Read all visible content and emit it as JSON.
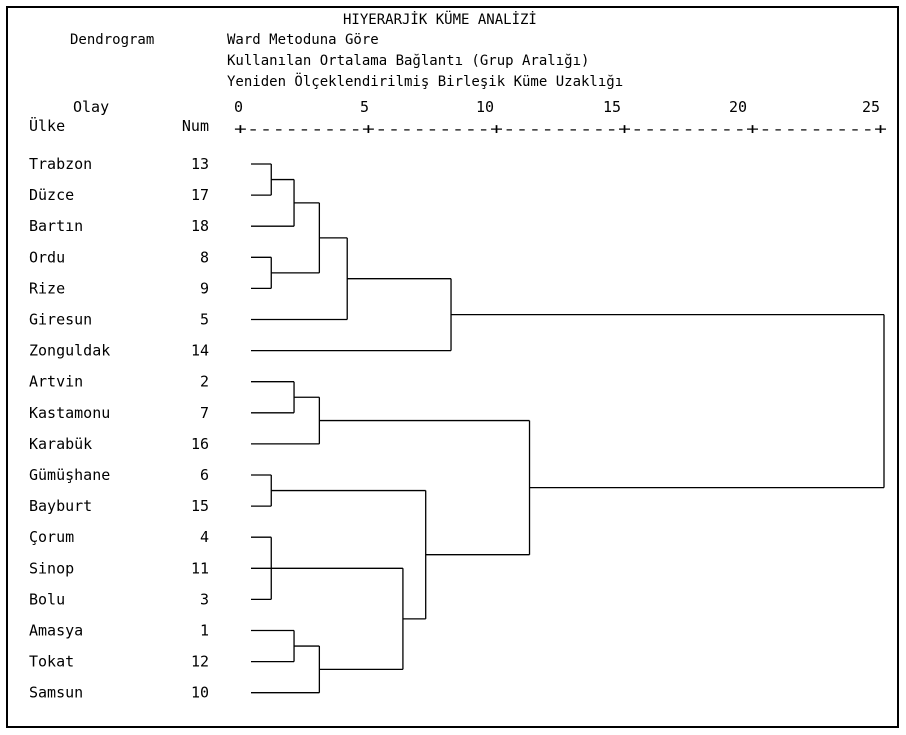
{
  "header": {
    "title": "HIYERARJİK KÜME ANALİZİ",
    "dendrogram_label": "Dendrogram",
    "line1": "Ward Metoduna Göre",
    "line2": "Kullanılan Ortalama Bağlantı (Grup Aralığı)",
    "line3": "Yeniden Ölçeklendirilmiş Birleşik Küme Uzaklığı"
  },
  "columns": {
    "case_label": "Olay",
    "country_label": "Ülke",
    "num_label": "Num"
  },
  "axis": {
    "ticks": [
      "0",
      "5",
      "10",
      "15",
      "20",
      "25"
    ],
    "ruler": "+---------+---------+---------+---------+---------+"
  },
  "rows": [
    {
      "country": "Trabzon",
      "num": "13"
    },
    {
      "country": "Düzce",
      "num": "17"
    },
    {
      "country": "Bartın",
      "num": "18"
    },
    {
      "country": "Ordu",
      "num": "8"
    },
    {
      "country": "Rize",
      "num": "9"
    },
    {
      "country": "Giresun",
      "num": "5"
    },
    {
      "country": "Zonguldak",
      "num": "14"
    },
    {
      "country": "Artvin",
      "num": "2"
    },
    {
      "country": "Kastamonu",
      "num": "7"
    },
    {
      "country": "Karabük",
      "num": "16"
    },
    {
      "country": "Gümüşhane",
      "num": "6"
    },
    {
      "country": "Bayburt",
      "num": "15"
    },
    {
      "country": "Çorum",
      "num": "4"
    },
    {
      "country": "Sinop",
      "num": "11"
    },
    {
      "country": "Bolu",
      "num": "3"
    },
    {
      "country": "Amasya",
      "num": "1"
    },
    {
      "country": "Tokat",
      "num": "12"
    },
    {
      "country": "Samsun",
      "num": "10"
    }
  ],
  "merges": [
    {
      "rows": [
        0,
        1
      ],
      "distance": 0.8
    },
    {
      "rows": [
        3,
        4
      ],
      "distance": 0.8
    },
    {
      "rows": [
        0,
        1,
        2
      ],
      "distance": 1.7
    },
    {
      "rows": [
        0,
        1,
        2,
        3,
        4
      ],
      "distance": 2.7
    },
    {
      "rows": [
        0,
        1,
        2,
        3,
        4,
        5
      ],
      "distance": 3.8
    },
    {
      "rows": [
        0,
        1,
        2,
        3,
        4,
        5,
        6
      ],
      "distance": 7.9
    },
    {
      "rows": [
        7,
        8
      ],
      "distance": 1.7
    },
    {
      "rows": [
        7,
        8,
        9
      ],
      "distance": 2.7
    },
    {
      "rows": [
        10,
        11
      ],
      "distance": 0.8
    },
    {
      "rows": [
        12,
        13,
        14
      ],
      "distance": 0.8
    },
    {
      "rows": [
        15,
        16
      ],
      "distance": 1.7
    },
    {
      "rows": [
        15,
        16,
        17
      ],
      "distance": 2.7
    },
    {
      "rows": [
        12,
        13,
        14,
        15,
        16,
        17
      ],
      "distance": 6.0
    },
    {
      "rows": [
        10,
        11,
        12,
        13,
        14,
        15,
        16,
        17
      ],
      "distance": 6.9
    },
    {
      "rows": [
        7,
        8,
        9,
        10,
        11,
        12,
        13,
        14,
        15,
        16,
        17
      ],
      "distance": 11.0
    },
    {
      "rows": [
        0,
        1,
        2,
        3,
        4,
        5,
        6,
        7,
        8,
        9,
        10,
        11,
        12,
        13,
        14,
        15,
        16,
        17
      ],
      "distance": 25.0
    }
  ]
}
